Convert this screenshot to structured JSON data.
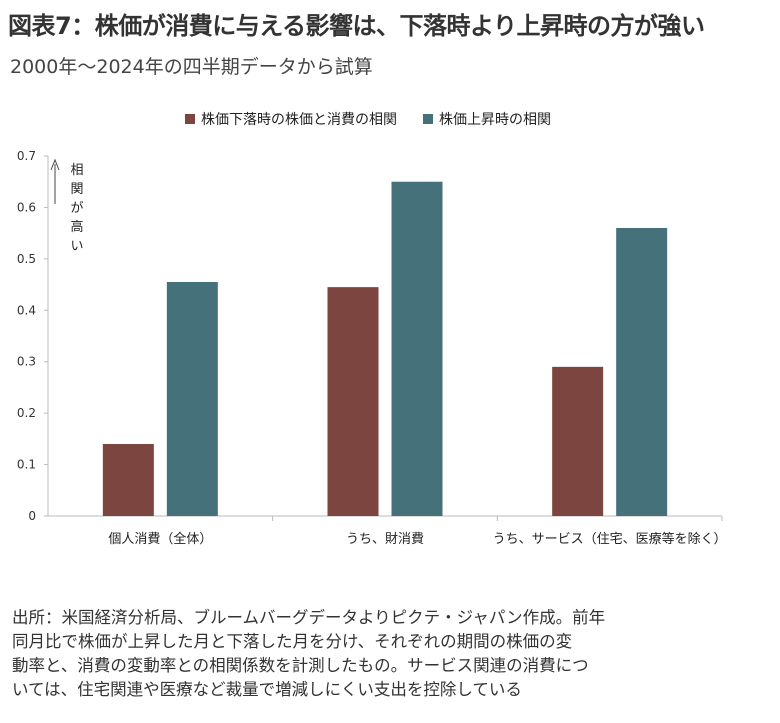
{
  "title": "図表7：株価が消費に与える影響は、下落時より上昇時の方が強い",
  "subtitle": "2000年〜2024年の四半期データから試算",
  "note_lines": [
    "出所：米国経済分析局、ブルームバーグデータよりピクテ・ジャパン作成。前年",
    "同月比で株価が上昇した月と下落した月を分け、それぞれの期間の株価の変",
    "動率と、消費の変動率との相関係数を計測したもの。サービス関連の消費につ",
    "いては、住宅関連や医療など裁量で増減しにくい支出を控除している"
  ],
  "chart_data": {
    "type": "bar",
    "categories": [
      "個人消費（全体）",
      "うち、財消費",
      "うち、サービス（住宅、医療等を除く）"
    ],
    "series": [
      {
        "name": "株価下落時の株価と消費の相関",
        "values": [
          0.14,
          0.445,
          0.29
        ],
        "color": "#7d4540"
      },
      {
        "name": "株価上昇時の相関",
        "values": [
          0.455,
          0.65,
          0.56
        ],
        "color": "#45727a"
      }
    ],
    "ylim": [
      0,
      0.7
    ],
    "yticks": [
      "0",
      "0.1",
      "0.2",
      "0.3",
      "0.4",
      "0.5",
      "0.6",
      "0.7"
    ],
    "annotation": [
      "相",
      "関",
      "が",
      "高",
      "い"
    ],
    "legend_position": "top",
    "grid": false
  }
}
